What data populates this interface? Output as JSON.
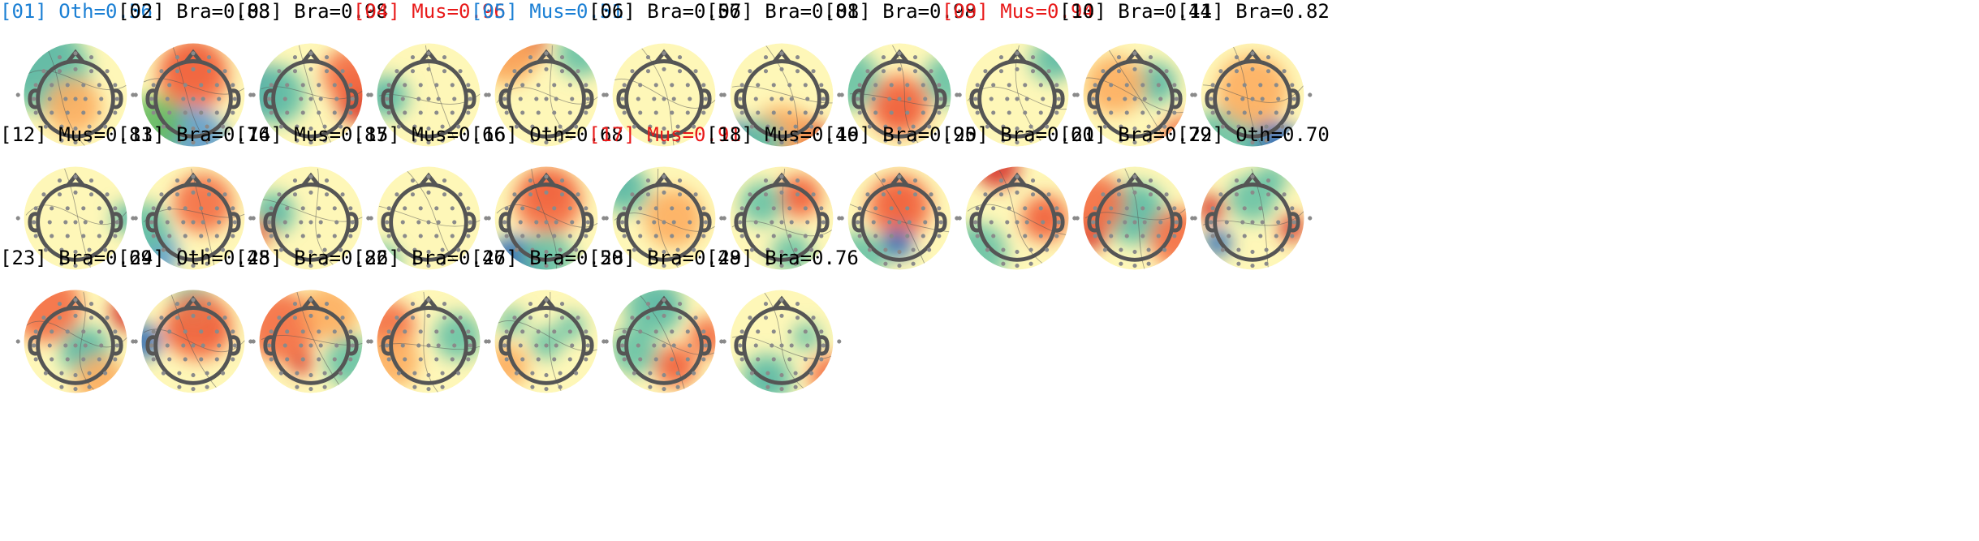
{
  "colors": {
    "default": "#000000",
    "blue": "#1a7fd4",
    "red": "#e81919"
  },
  "components": [
    {
      "id": "[01]",
      "label": "Oth=0.56",
      "color": "blue",
      "theme": "oth-upper-left-blue"
    },
    {
      "id": "[02]",
      "label": "Bra=0.88",
      "color": "default",
      "theme": "frontal-red-bottom-blue"
    },
    {
      "id": "[03]",
      "label": "Bra=0.98",
      "color": "default",
      "theme": "left-blue-right-red"
    },
    {
      "id": "[04]",
      "label": "Mus=0.96",
      "color": "red",
      "theme": "left-temporal-blue"
    },
    {
      "id": "[05]",
      "label": "Mus=0.51",
      "color": "blue",
      "theme": "top-left-red"
    },
    {
      "id": "[06]",
      "label": "Bra=0.56",
      "color": "default",
      "theme": "flat"
    },
    {
      "id": "[07]",
      "label": "Bra=0.81",
      "color": "default",
      "theme": "bottom-red-blue"
    },
    {
      "id": "[08]",
      "label": "Bra=0.98",
      "color": "default",
      "theme": "central-red-blob"
    },
    {
      "id": "[09]",
      "label": "Mus=0.94",
      "color": "red",
      "theme": "top-right-blue"
    },
    {
      "id": "[10]",
      "label": "Bra=0.44",
      "color": "default",
      "theme": "right-blue-spot"
    },
    {
      "id": "[11]",
      "label": "Bra=0.82",
      "color": "default",
      "theme": "bottom-blue"
    },
    {
      "id": "[12]",
      "label": "Mus=0.81",
      "color": "default",
      "theme": "flat-right-edge"
    },
    {
      "id": "[13]",
      "label": "Bra=0.76",
      "color": "default",
      "theme": "frontal-red-lower-left-blue"
    },
    {
      "id": "[14]",
      "label": "Mus=0.87",
      "color": "default",
      "theme": "left-blue-spot"
    },
    {
      "id": "[15]",
      "label": "Mus=0.66",
      "color": "default",
      "theme": "flat-lower-left"
    },
    {
      "id": "[16]",
      "label": "Oth=0.68",
      "color": "default",
      "theme": "frontal-red-bottom-blue-2"
    },
    {
      "id": "[17]",
      "label": "Mus=0.91",
      "color": "red",
      "theme": "upper-left-blue"
    },
    {
      "id": "[18]",
      "label": "Mus=0.46",
      "color": "default",
      "theme": "right-red-spot"
    },
    {
      "id": "[19]",
      "label": "Bra=0.95",
      "color": "default",
      "theme": "red-over-blue"
    },
    {
      "id": "[20]",
      "label": "Bra=0.60",
      "color": "default",
      "theme": "right-red-spot-2"
    },
    {
      "id": "[21]",
      "label": "Bra=0.79",
      "color": "default",
      "theme": "center-blue-left-red"
    },
    {
      "id": "[22]",
      "label": "Oth=0.70",
      "color": "default",
      "theme": "dual-red"
    },
    {
      "id": "[23]",
      "label": "Bra=0.69",
      "color": "default",
      "theme": "red-top-blue-center"
    },
    {
      "id": "[24]",
      "label": "Oth=0.48",
      "color": "default",
      "theme": "frontal-red-blue-top"
    },
    {
      "id": "[25]",
      "label": "Bra=0.82",
      "color": "default",
      "theme": "orange-left-red-center"
    },
    {
      "id": "[26]",
      "label": "Bra=0.46",
      "color": "default",
      "theme": "left-orange"
    },
    {
      "id": "[27]",
      "label": "Bra=0.50",
      "color": "default",
      "theme": "center-green"
    },
    {
      "id": "[28]",
      "label": "Bra=0.48",
      "color": "default",
      "theme": "top-blue-red-center"
    },
    {
      "id": "[29]",
      "label": "Bra=0.76",
      "color": "default",
      "theme": "lower-left-blue"
    }
  ]
}
